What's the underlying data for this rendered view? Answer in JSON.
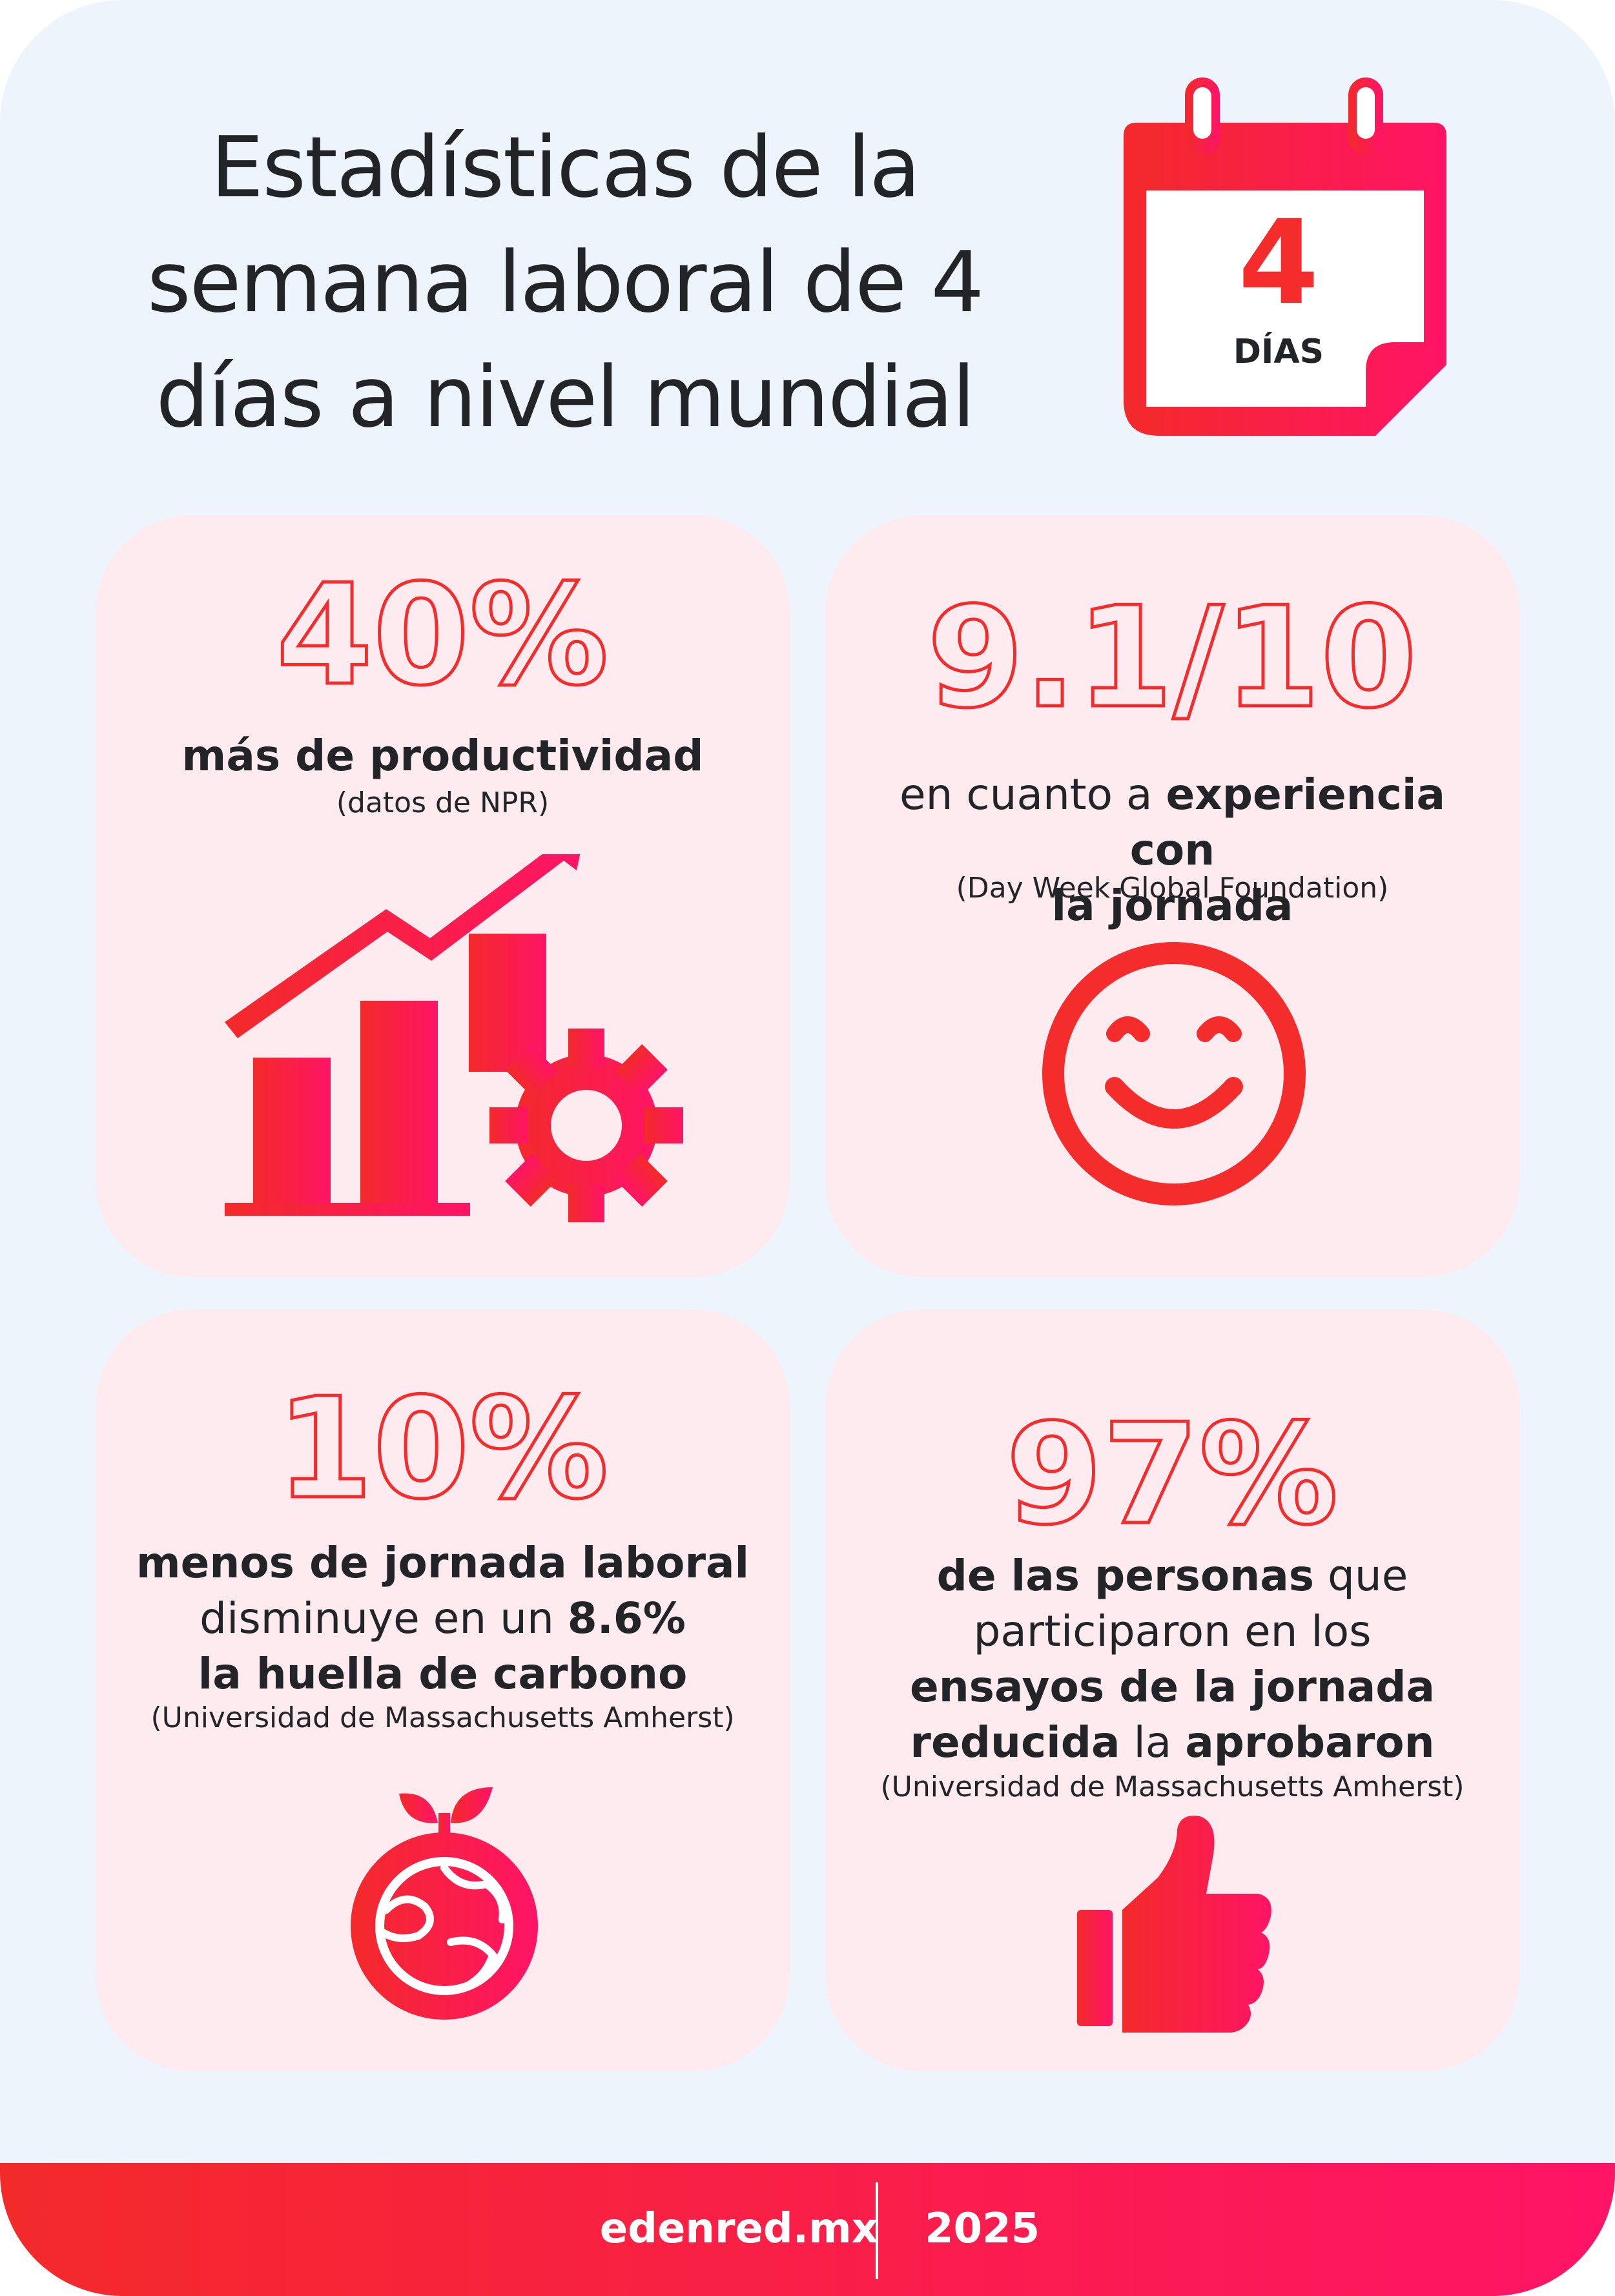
{
  "header": {
    "title_lines": [
      "Estadísticas de la",
      "semana laboral de 4",
      "días a nivel mundial"
    ],
    "calendar_number": "4",
    "calendar_label": "DÍAS",
    "calendar_icon": "calendar-icon"
  },
  "cards": [
    {
      "stat": "40%",
      "text_bold": "más de productividad",
      "source": "(datos de NPR)",
      "icon": "growth-chart-gear-icon"
    },
    {
      "stat": "9.1/10",
      "text_plain_1": "en cuanto a ",
      "text_bold_1": "experiencia con",
      "text_bold_2": "la jornada",
      "source": "(Day Week Global Foundation)",
      "icon": "smiley-face-icon"
    },
    {
      "stat": "10%",
      "text_bold_1": "menos de jornada laboral",
      "text_plain_1": "disminuye en un ",
      "text_bold_2": "8.6%",
      "text_bold_3": "la huella de carbono",
      "source": "(Universidad de Massachusetts Amherst)",
      "icon": "earth-sprout-icon"
    },
    {
      "stat": "97%",
      "text_bold_1": "de las personas",
      "text_plain_1": " que",
      "text_plain_2": "participaron en los",
      "text_bold_2": "ensayos de la jornada",
      "text_bold_3": "reducida",
      "text_plain_3": " la ",
      "text_bold_4": "aprobaron",
      "source": "(Universidad de Massachusetts Amherst)",
      "icon": "thumbs-up-icon"
    }
  ],
  "footer": {
    "url": "edenred.mx",
    "year": "2025"
  },
  "colors": {
    "accent_red": "#f52c2c",
    "accent_pink": "#ff1466",
    "card_bg": "#fdebef",
    "page_bg": "#eef4fc",
    "text_dark": "#222427"
  }
}
